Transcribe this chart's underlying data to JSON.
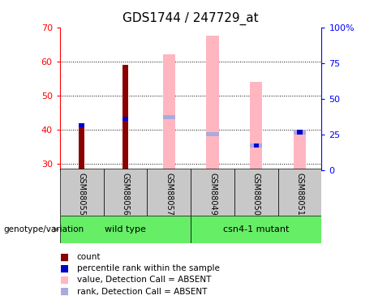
{
  "title": "GDS1744 / 247729_at",
  "samples": [
    "GSM88055",
    "GSM88056",
    "GSM88057",
    "GSM88049",
    "GSM88050",
    "GSM88051"
  ],
  "group_labels": [
    "wild type",
    "csn4-1 mutant"
  ],
  "ylim_left": [
    28,
    70
  ],
  "ylim_right": [
    0,
    100
  ],
  "yticks_left": [
    30,
    40,
    50,
    60,
    70
  ],
  "yticks_right": [
    0,
    25,
    50,
    75,
    100
  ],
  "yticklabels_right": [
    "0",
    "25",
    "50",
    "75",
    "100%"
  ],
  "count_values": [
    41.0,
    59.0,
    null,
    null,
    null,
    null
  ],
  "percentile_rank_values": [
    41.2,
    43.2,
    null,
    null,
    35.2,
    39.2
  ],
  "absent_value_values": [
    null,
    null,
    62.0,
    67.5,
    54.0,
    39.5
  ],
  "absent_rank_values": [
    null,
    null,
    43.5,
    38.5,
    35.2,
    39.2
  ],
  "count_color": "#8B0000",
  "percentile_color": "#0000CD",
  "absent_value_color": "#FFB6C1",
  "absent_rank_color": "#AAAADD",
  "group_bg_color": "#66EE66",
  "sample_bg_color": "#C8C8C8",
  "title_fontsize": 11,
  "tick_fontsize": 8,
  "legend_fontsize": 7.5
}
